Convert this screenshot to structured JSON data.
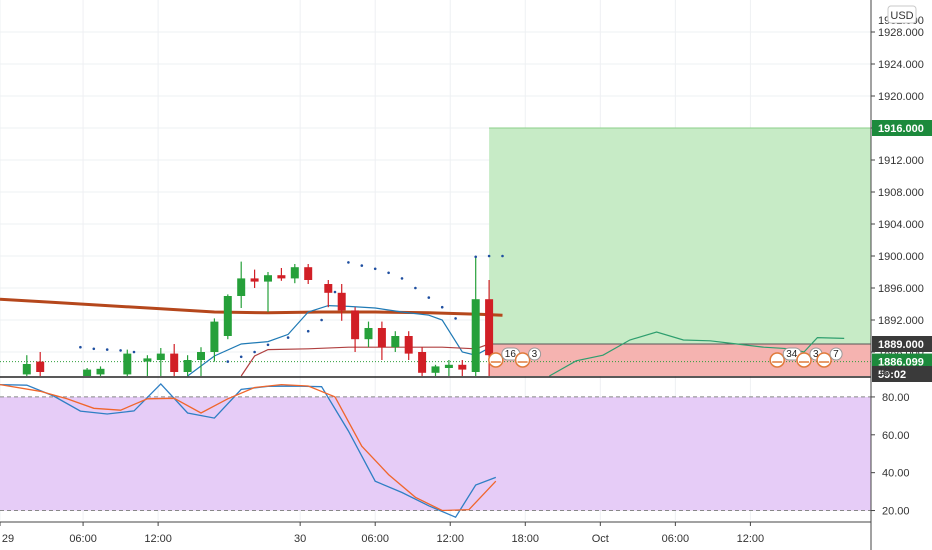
{
  "currency_button": "USD",
  "colors": {
    "grid": "#eef0f3",
    "up_candle": "#26a03a",
    "down_candle": "#d11f26",
    "ma_long": "#b5471c",
    "channel_line": "#1f7ab5",
    "channel_lower": "#b04040",
    "target_zone": "#c7ebc6",
    "stop_zone": "#f5b3b0",
    "projection": "#2e9e6e",
    "osc_fill": "#e6ccf7",
    "osc_k": "#2f7fc4",
    "osc_d": "#f0662c",
    "tag_green": "#1c8a3c",
    "tag_dark": "#3a3a3a"
  },
  "chart_data": [
    {
      "type": "candlestick",
      "y_axis": {
        "range": [
          1885,
          1931
        ],
        "ticks": [
          "1928.000",
          "1924.000",
          "1920.000",
          "1916.000",
          "1912.000",
          "1908.000",
          "1904.000",
          "1900.000",
          "1896.000",
          "1892.000",
          "1888.000"
        ],
        "partial_top_label": "1932.000",
        "partial_bottom_label": "18"
      },
      "x_axis": {
        "range": [
          0,
          65
        ],
        "ticks": [
          {
            "x": 0,
            "label": "29"
          },
          {
            "x": 6.2,
            "label": "06:00"
          },
          {
            "x": 11.8,
            "label": "12:00"
          },
          {
            "x": 22.4,
            "label": "30"
          },
          {
            "x": 28,
            "label": "06:00"
          },
          {
            "x": 33.6,
            "label": "12:00"
          },
          {
            "x": 39.2,
            "label": "18:00"
          },
          {
            "x": 44.8,
            "label": "Oct"
          },
          {
            "x": 50.4,
            "label": "06:00"
          },
          {
            "x": 56,
            "label": "12:00"
          }
        ]
      },
      "candles": [
        {
          "x": 2,
          "o": 1885.2,
          "h": 1887.6,
          "l": 1885.0,
          "c": 1886.5
        },
        {
          "x": 3,
          "o": 1886.8,
          "h": 1888.0,
          "l": 1885.0,
          "c": 1885.5
        },
        {
          "x": 6.5,
          "o": 1885.0,
          "h": 1886.0,
          "l": 1885.0,
          "c": 1885.8
        },
        {
          "x": 7.5,
          "o": 1885.2,
          "h": 1886.2,
          "l": 1885.0,
          "c": 1885.9
        },
        {
          "x": 9.5,
          "o": 1885.2,
          "h": 1888.3,
          "l": 1885.0,
          "c": 1887.8
        },
        {
          "x": 11,
          "o": 1886.8,
          "h": 1887.6,
          "l": 1885.0,
          "c": 1887.2
        },
        {
          "x": 12,
          "o": 1887.0,
          "h": 1888.5,
          "l": 1885.0,
          "c": 1887.8
        },
        {
          "x": 13,
          "o": 1887.8,
          "h": 1889.0,
          "l": 1885.0,
          "c": 1885.5
        },
        {
          "x": 14,
          "o": 1885.5,
          "h": 1887.6,
          "l": 1885.0,
          "c": 1887.0
        },
        {
          "x": 15,
          "o": 1887.0,
          "h": 1888.6,
          "l": 1885.0,
          "c": 1888.0
        },
        {
          "x": 16,
          "o": 1888.0,
          "h": 1892.2,
          "l": 1886.8,
          "c": 1891.8
        },
        {
          "x": 17,
          "o": 1890.0,
          "h": 1895.2,
          "l": 1889.6,
          "c": 1895.0
        },
        {
          "x": 18,
          "o": 1895.0,
          "h": 1899.3,
          "l": 1893.5,
          "c": 1897.2
        },
        {
          "x": 19,
          "o": 1897.2,
          "h": 1898.3,
          "l": 1896.0,
          "c": 1896.8
        },
        {
          "x": 20,
          "o": 1896.8,
          "h": 1898.0,
          "l": 1893.0,
          "c": 1897.6
        },
        {
          "x": 21,
          "o": 1897.6,
          "h": 1898.5,
          "l": 1896.9,
          "c": 1897.2
        },
        {
          "x": 22,
          "o": 1897.2,
          "h": 1899.0,
          "l": 1896.6,
          "c": 1898.6
        },
        {
          "x": 23,
          "o": 1898.6,
          "h": 1899.0,
          "l": 1896.5,
          "c": 1897.0
        },
        {
          "x": 24.5,
          "o": 1896.5,
          "h": 1897.0,
          "l": 1893.6,
          "c": 1895.4
        },
        {
          "x": 25.5,
          "o": 1895.4,
          "h": 1896.5,
          "l": 1891.9,
          "c": 1893.2
        },
        {
          "x": 26.5,
          "o": 1893.2,
          "h": 1893.6,
          "l": 1888.0,
          "c": 1889.6
        },
        {
          "x": 27.5,
          "o": 1889.6,
          "h": 1891.8,
          "l": 1888.6,
          "c": 1891.0
        },
        {
          "x": 28.5,
          "o": 1891.0,
          "h": 1891.8,
          "l": 1887.0,
          "c": 1888.6
        },
        {
          "x": 29.5,
          "o": 1888.6,
          "h": 1890.6,
          "l": 1888.0,
          "c": 1890.0
        },
        {
          "x": 30.5,
          "o": 1890.0,
          "h": 1890.6,
          "l": 1887.0,
          "c": 1887.8
        },
        {
          "x": 31.5,
          "o": 1888.0,
          "h": 1888.6,
          "l": 1885.0,
          "c": 1885.4
        },
        {
          "x": 32.5,
          "o": 1885.4,
          "h": 1886.4,
          "l": 1885.0,
          "c": 1886.2
        },
        {
          "x": 33.5,
          "o": 1886.0,
          "h": 1887.0,
          "l": 1885.0,
          "c": 1886.4
        },
        {
          "x": 34.5,
          "o": 1886.4,
          "h": 1887.0,
          "l": 1885.0,
          "c": 1885.8
        },
        {
          "x": 35.5,
          "o": 1885.5,
          "h": 1900.0,
          "l": 1885.0,
          "c": 1894.6
        },
        {
          "x": 36.5,
          "o": 1894.6,
          "h": 1897.0,
          "l": 1885.0,
          "c": 1887.6
        }
      ],
      "ma_long": [
        [
          0,
          1894.6
        ],
        [
          4,
          1894.2
        ],
        [
          8,
          1893.8
        ],
        [
          12,
          1893.4
        ],
        [
          16,
          1893.0
        ],
        [
          20,
          1892.9
        ],
        [
          24,
          1893.0
        ],
        [
          28,
          1893.0
        ],
        [
          32,
          1892.9
        ],
        [
          36,
          1892.7
        ],
        [
          37.5,
          1892.6
        ]
      ],
      "channel_upper": [
        [
          14,
          1885.0
        ],
        [
          16,
          1887.5
        ],
        [
          18,
          1889.0
        ],
        [
          20,
          1889.3
        ],
        [
          21.5,
          1890.2
        ],
        [
          23,
          1893.0
        ],
        [
          24.5,
          1893.8
        ],
        [
          26,
          1893.7
        ],
        [
          28,
          1893.5
        ],
        [
          30,
          1893.0
        ],
        [
          32,
          1892.6
        ],
        [
          33,
          1892.0
        ],
        [
          34.5,
          1888.0
        ],
        [
          35.5,
          1887.6
        ],
        [
          36.5,
          1888.5
        ]
      ],
      "channel_lower": [
        [
          18,
          1885.0
        ],
        [
          19,
          1887.5
        ],
        [
          20,
          1888.3
        ],
        [
          23,
          1888.4
        ],
        [
          26,
          1888.6
        ],
        [
          30,
          1888.6
        ],
        [
          33,
          1888.6
        ],
        [
          35.5,
          1888.4
        ],
        [
          36.5,
          1889.0
        ]
      ],
      "psar_dots": [
        [
          6,
          1888.6
        ],
        [
          7,
          1888.4
        ],
        [
          8,
          1888.3
        ],
        [
          9,
          1888.2
        ],
        [
          10,
          1888.0
        ],
        [
          17,
          1886.8
        ],
        [
          18,
          1887.4
        ],
        [
          19,
          1888.0
        ],
        [
          20,
          1888.9
        ],
        [
          21.5,
          1889.8
        ],
        [
          23,
          1890.6
        ],
        [
          24,
          1892.0
        ],
        [
          25,
          1895.5
        ],
        [
          26,
          1899.2
        ],
        [
          27,
          1898.8
        ],
        [
          28,
          1898.4
        ],
        [
          29,
          1897.9
        ],
        [
          30,
          1897.2
        ],
        [
          31,
          1896.0
        ],
        [
          32,
          1894.8
        ],
        [
          33,
          1893.6
        ],
        [
          34,
          1892.2
        ],
        [
          35.5,
          1899.9
        ],
        [
          36.5,
          1900.0
        ],
        [
          37.5,
          1900.0
        ]
      ],
      "target_zone": {
        "x_start": 36.5,
        "x_end": 65,
        "y_low": 1889.0,
        "y_high": 1916.0
      },
      "stop_zone": {
        "x_start": 36.5,
        "x_end": 65,
        "y_low": 1885.0,
        "y_high": 1889.0
      },
      "projection_line": [
        [
          41,
          1885.0
        ],
        [
          43,
          1886.9
        ],
        [
          45,
          1887.6
        ],
        [
          47,
          1889.5
        ],
        [
          49,
          1890.5
        ],
        [
          51,
          1889.5
        ],
        [
          53,
          1889.4
        ],
        [
          55,
          1889.0
        ],
        [
          57,
          1888.6
        ],
        [
          59,
          1888.4
        ],
        [
          60,
          1888.0
        ],
        [
          61,
          1889.8
        ],
        [
          63,
          1889.7
        ]
      ],
      "reference_line": 1886.8,
      "price_tags": [
        {
          "value": 1916.0,
          "label": "1916.000",
          "style": "green"
        },
        {
          "value": 1889.0,
          "label": "1889.000",
          "style": "dark"
        },
        {
          "value": 1886.8,
          "label": "1886.099",
          "style": "green"
        },
        {
          "value": 1885.0,
          "label": "59:02",
          "style": "dark"
        }
      ],
      "event_badges": [
        {
          "x": 37,
          "label": "16"
        },
        {
          "x": 39,
          "label": "3"
        },
        {
          "x": 58,
          "label": "34"
        },
        {
          "x": 60,
          "label": "3"
        },
        {
          "x": 61.5,
          "label": "7"
        }
      ]
    },
    {
      "type": "line",
      "y_axis": {
        "range": [
          15,
          90
        ],
        "ticks": [
          "80.00",
          "60.00",
          "40.00",
          "20.00"
        ],
        "bands": [
          20,
          80
        ]
      },
      "x_range": [
        0,
        65
      ],
      "series": [
        {
          "values": [
            [
              0,
              86.5
            ],
            [
              2,
              86.2
            ],
            [
              4,
              80.5
            ],
            [
              6,
              72.5
            ],
            [
              8,
              71.0
            ],
            [
              10,
              72.6
            ],
            [
              12,
              86.9
            ],
            [
              14,
              71.5
            ],
            [
              16,
              68.8
            ],
            [
              18,
              84.0
            ],
            [
              20,
              85.6
            ],
            [
              22,
              85.7
            ],
            [
              24,
              85.4
            ],
            [
              26,
              62.0
            ],
            [
              28,
              35.5
            ],
            [
              30,
              29.5
            ],
            [
              32,
              22.5
            ],
            [
              34,
              16.5
            ],
            [
              35.5,
              33.5
            ],
            [
              37,
              37.5
            ]
          ]
        },
        {
          "values": [
            [
              0,
              86.5
            ],
            [
              3,
              83.0
            ],
            [
              5,
              79.0
            ],
            [
              7,
              74.0
            ],
            [
              9,
              73.0
            ],
            [
              11,
              79.0
            ],
            [
              13,
              79.3
            ],
            [
              15,
              71.5
            ],
            [
              17,
              79.0
            ],
            [
              19,
              85.0
            ],
            [
              21,
              86.5
            ],
            [
              23,
              85.8
            ],
            [
              25,
              80.0
            ],
            [
              27,
              54.0
            ],
            [
              29,
              39.0
            ],
            [
              31,
              27.0
            ],
            [
              33,
              20.0
            ],
            [
              35,
              20.5
            ],
            [
              37,
              35.5
            ]
          ]
        }
      ]
    }
  ]
}
